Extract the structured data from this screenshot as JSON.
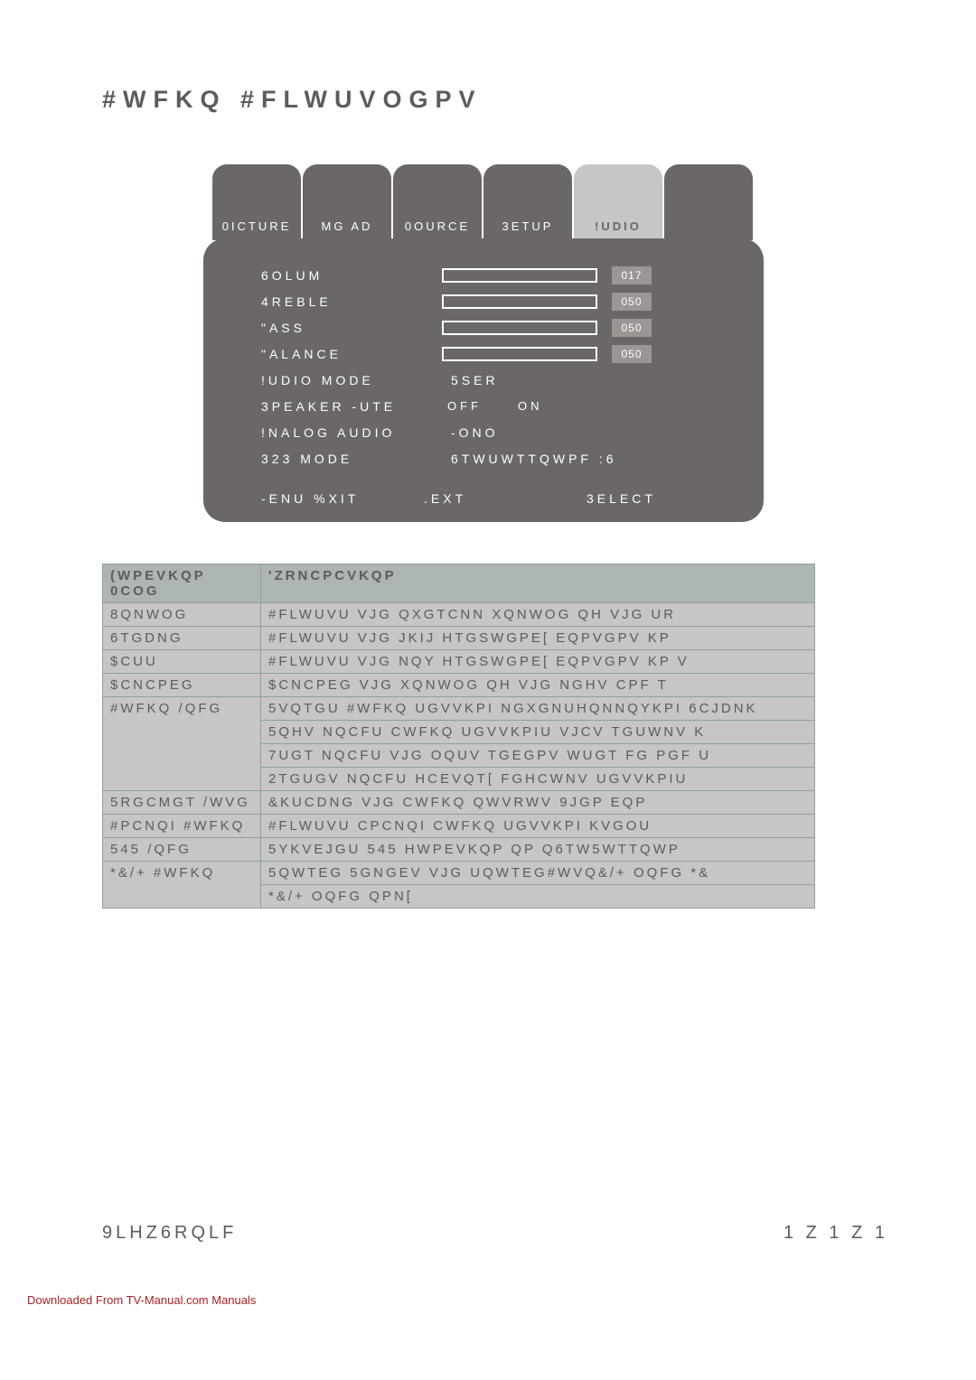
{
  "title": "#WFKQ #FLWUVOGPV",
  "osd": {
    "tabs": [
      "0ICTURE",
      "MG AD",
      "0OURCE",
      "3ETUP",
      "!UDIO"
    ],
    "active_tab_index": 4,
    "sliders": [
      {
        "label": "6OLUM",
        "value": "017"
      },
      {
        "label": "4REBLE",
        "value": "050"
      },
      {
        "label": "\"ASS",
        "value": "050"
      },
      {
        "label": "\"ALANCE",
        "value": "050"
      }
    ],
    "rows": [
      {
        "label": "!UDIO MODE",
        "value": "5SER"
      },
      {
        "label": "3PEAKER -UTE",
        "off": "OFF",
        "on": "ON"
      },
      {
        "label": "!NALOG AUDIO",
        "value": "-ONO"
      },
      {
        "label": "323 MODE",
        "value": "6TWUWTTQWPF :6"
      }
    ],
    "footer": [
      "-ENU",
      "%XIT",
      ".EXT",
      "3ELECT"
    ]
  },
  "table": {
    "headers": [
      "(WPEVKQP 0COG",
      "'ZRNCPCVKQP"
    ],
    "rows": [
      [
        "8QNWOG",
        "#FLWUVU VJG QXGTCNN XQNWOG QH VJG UR"
      ],
      [
        "6TGDNG",
        "#FLWUVU VJG JKIJ HTGSWGPE[ EQPVGPV KP"
      ],
      [
        "$CUU",
        "#FLWUVU VJG NQY HTGSWGPE[ EQPVGPV KP V"
      ],
      [
        "$CNCPEG",
        "$CNCPEG VJG XQNWOG QH VJG NGHV CPF T"
      ],
      [
        "#WFKQ /QFG",
        "5VQTGU #WFKQ UGVVKPI NGXGNUHQNNQYKPI 6CJDNK"
      ],
      [
        "",
        "5QHV NQCFU CWFKQ UGVVKPIU VJCV TGUWNV K"
      ],
      [
        "",
        "7UGT NQCFU VJG OQUV TGEGPV WUGT FG PGF U"
      ],
      [
        "",
        "2TGUGV NQCFU HCEVQT[ FGHCWNV UGVVKPIU"
      ],
      [
        "5RGCMGT /WVG",
        "&KUCDNG VJG CWFKQ QWVRWV  9JGP EQP"
      ],
      [
        "#PCNQI #WFKQ",
        "#FLWUVU CPCNQI CWFKQ UGVVKPI KVGOU"
      ],
      [
        "545 /QFG",
        "5YKVEJGU 545 HWPEVKQP QP Q6TW5WTTQWP"
      ],
      [
        "*&/+ #WFKQ",
        "5QWTEG 5GNGEV VJG UQWTEG#WVQ&/+ OQFG  *&"
      ],
      [
        "",
        "*&/+ OQFG QPN["
      ]
    ]
  },
  "footer": {
    "left": "9LHZ6RQLF",
    "right": "1  Z 1   Z 1"
  },
  "download": "Downloaded From TV-Manual.com Manuals"
}
